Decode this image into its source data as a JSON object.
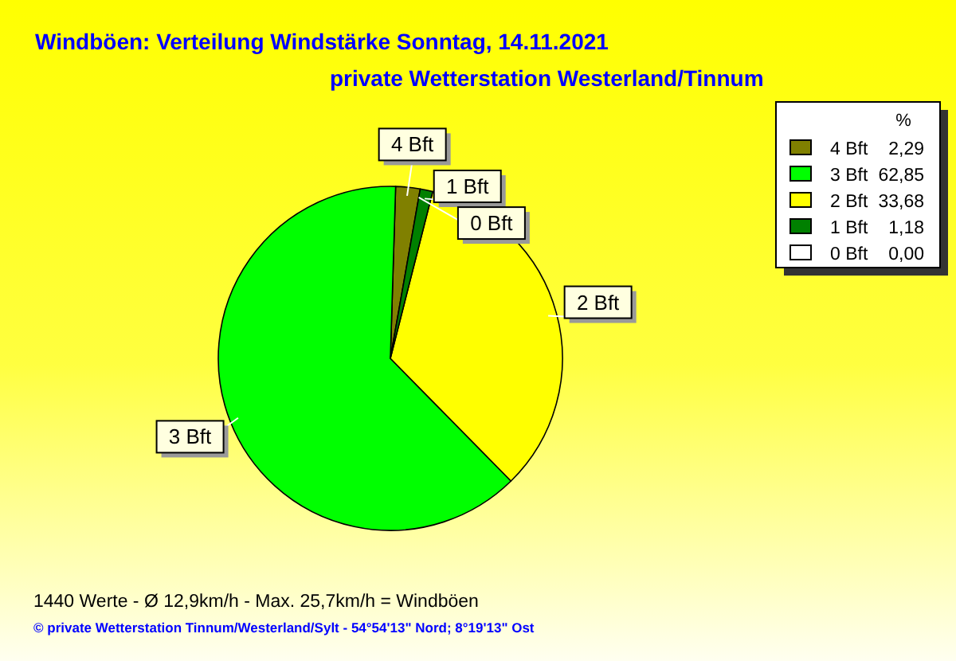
{
  "chart_data": {
    "type": "pie",
    "title": "Windböen: Verteilung Windstärke  Sonntag, 14.11.2021",
    "subtitle": "private Wetterstation Westerland/Tinnum",
    "legend_title": "%",
    "legend": "top right",
    "categories": [
      "4 Bft",
      "3 Bft",
      "2 Bft",
      "1 Bft",
      "0 Bft"
    ],
    "values": [
      2.29,
      62.85,
      33.68,
      1.18,
      0.0
    ],
    "value_labels": [
      "2,29",
      "62,85",
      "33,68",
      "1,18",
      "0,00"
    ],
    "colors": [
      "#808000",
      "#00ff00",
      "#ffff00",
      "#008000",
      "#ffffff"
    ],
    "annotations": [
      "1440 Werte   -   Ø 12,9km/h  -  Max. 25,7km/h = Windböen",
      "© private Wetterstation Tinnum/Westerland/Sylt   -   54°54'13\" Nord; 8°19'13\" Ost"
    ]
  }
}
